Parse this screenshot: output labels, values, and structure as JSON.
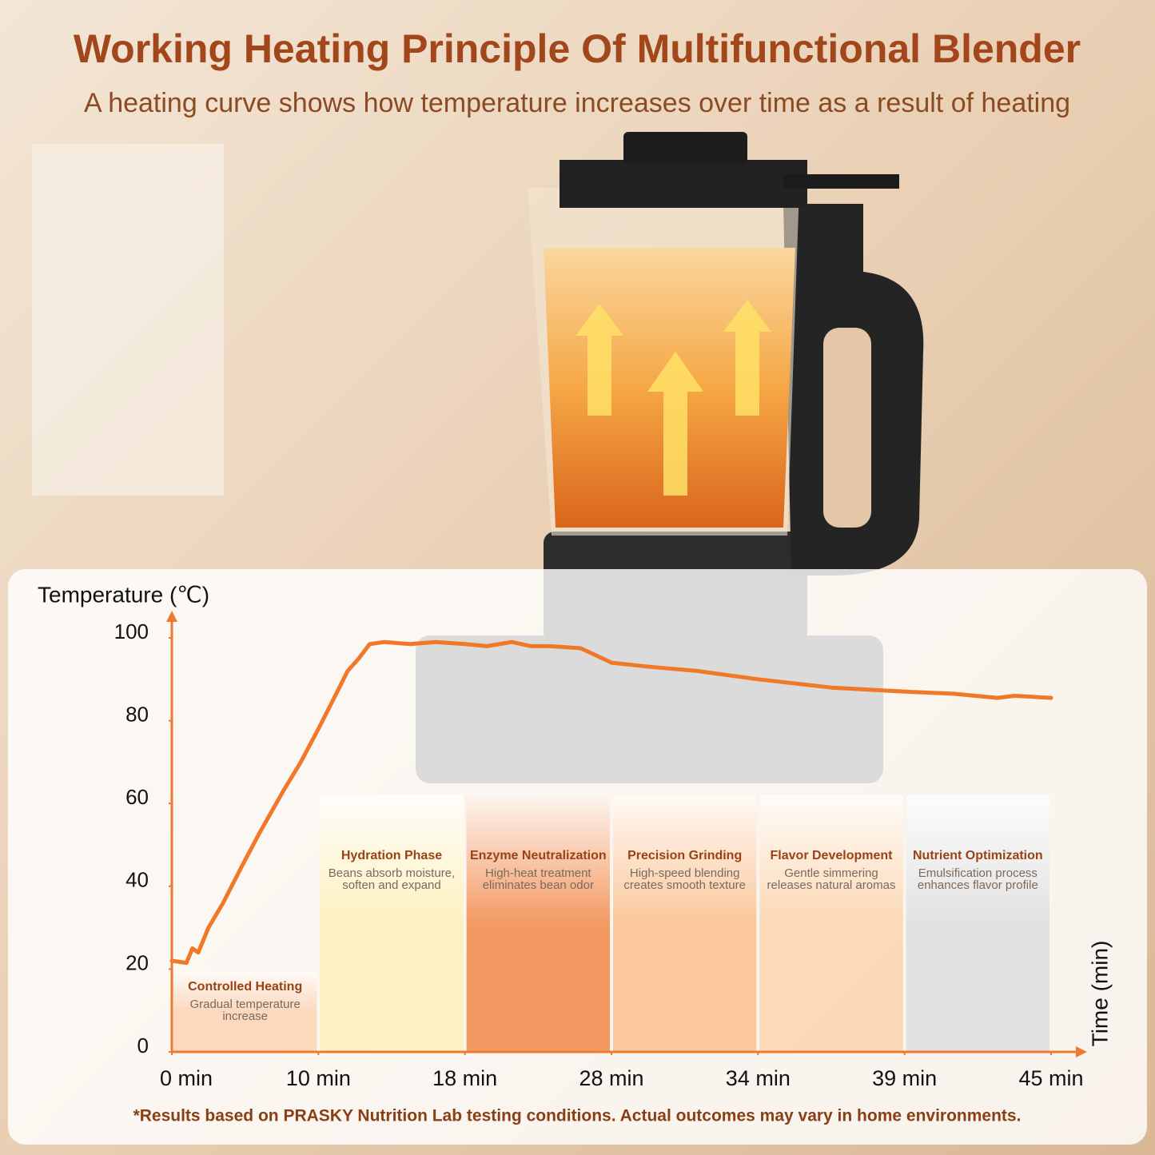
{
  "chart_data": {
    "type": "line",
    "title": "Working Heating Principle Of Multifunctional Blender",
    "subtitle": "A heating curve shows how temperature increases over time as a result of heating",
    "y_label": "Temperature (℃)",
    "x_label": "Time (min)",
    "footnote": "*Results based on PRASKY Nutrition Lab testing conditions. Actual outcomes may vary in home environments.",
    "xlim": [
      0,
      45
    ],
    "xticks": [
      {
        "value": 0,
        "label": "0 min"
      },
      {
        "value": 10,
        "label": "10 min"
      },
      {
        "value": 18,
        "label": "18 min"
      },
      {
        "value": 28,
        "label": "28 min"
      },
      {
        "value": 34,
        "label": "34 min"
      },
      {
        "value": 39,
        "label": "39 min"
      },
      {
        "value": 45,
        "label": "45 min"
      }
    ],
    "ylim": [
      0,
      100
    ],
    "yticks": [
      0,
      20,
      40,
      60,
      80,
      100
    ],
    "axis_color": "#ee7a30",
    "series": [
      {
        "color": "#f07828",
        "x": [
          0,
          1.0,
          1.4,
          1.8,
          2.5,
          3.5,
          4.8,
          6.0,
          7.6,
          8.8,
          10,
          10.8,
          11.6,
          12.2,
          12.8,
          13.6,
          15.0,
          16.4,
          18,
          19.5,
          21.2,
          22.5,
          23.8,
          25.9,
          27.4,
          28,
          29.6,
          31.5,
          34,
          36.5,
          39,
          41.0,
          42.8,
          43.5,
          45
        ],
        "values": [
          22,
          21.5,
          25,
          24,
          30,
          36,
          45,
          53,
          63,
          70,
          78,
          85,
          92,
          95,
          98.5,
          99,
          98.5,
          99,
          98.5,
          98,
          99,
          98,
          98,
          97.5,
          95,
          94,
          93,
          92,
          90,
          88,
          87,
          86.5,
          85.5,
          86,
          85.5
        ]
      }
    ],
    "phases": [
      {
        "title": "Controlled Heating",
        "lines": [
          "Gradual temperature",
          "increase"
        ],
        "from": 0,
        "to": 10,
        "color": "#fbd2b4"
      },
      {
        "title": "Hydration Phase",
        "lines": [
          "Beans absorb moisture,",
          "soften and expand"
        ],
        "from": 10,
        "to": 18,
        "color": "#fdf0b8"
      },
      {
        "title": "Enzyme Neutralization",
        "lines": [
          "High-heat treatment",
          "eliminates bean odor"
        ],
        "from": 18,
        "to": 28,
        "color": "#f1894a"
      },
      {
        "title": "Precision Grinding",
        "lines": [
          "High-speed blending",
          "creates smooth texture"
        ],
        "from": 28,
        "to": 34,
        "color": "#f9c08c"
      },
      {
        "title": "Flavor Development",
        "lines": [
          "Gentle simmering",
          "releases natural aromas"
        ],
        "from": 34,
        "to": 39,
        "color": "#fbd3ad"
      },
      {
        "title": "Nutrient Optimization",
        "lines": [
          "Emulsification process",
          "enhances flavor profile"
        ],
        "from": 39,
        "to": 45,
        "color": "#dedede"
      }
    ]
  }
}
